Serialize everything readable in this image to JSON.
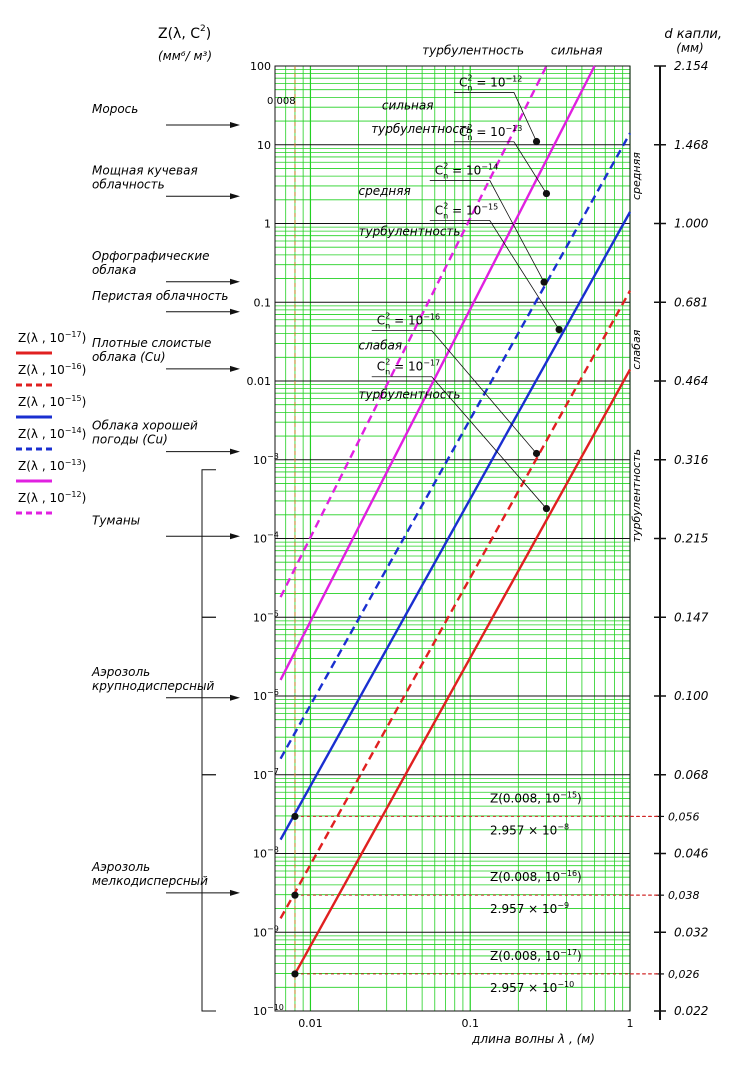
{
  "chart_data": {
    "type": "line",
    "x_scale": "log",
    "y_scale": "log",
    "xlim": [
      0.006,
      1
    ],
    "ylim": [
      1e-10,
      100
    ],
    "x_ticks": [
      {
        "value": 0.01,
        "label": "0.01"
      },
      {
        "value": 0.1,
        "label": "0.1"
      },
      {
        "value": 1,
        "label": "1"
      }
    ],
    "y_ticks": [
      {
        "value": 100,
        "label": "100"
      },
      {
        "value": 10,
        "label": "10"
      },
      {
        "value": 1,
        "label": "1"
      },
      {
        "value": 0.1,
        "label": "0.1"
      },
      {
        "value": 0.01,
        "label": "0.01"
      },
      {
        "value": 0.001,
        "base": "10",
        "exp": "−3"
      },
      {
        "value": 0.0001,
        "base": "10",
        "exp": "−4"
      },
      {
        "value": 1e-05,
        "base": "10",
        "exp": "−5"
      },
      {
        "value": 1e-06,
        "base": "10",
        "exp": "−6"
      },
      {
        "value": 1e-07,
        "base": "10",
        "exp": "−7"
      },
      {
        "value": 1e-08,
        "base": "10",
        "exp": "−8"
      },
      {
        "value": 1e-09,
        "base": "10",
        "exp": "−9"
      },
      {
        "value": 1e-10,
        "base": "10",
        "exp": "−10"
      }
    ],
    "y_title_main": "Z(λ, C",
    "y_title_sub": "n",
    "y_title_sup": "2",
    "y_title_end": ")",
    "y_units": "(мм⁶/ м³)",
    "x_title": "длина волны λ , (м)",
    "right_title_line1": "d капли,",
    "right_title_line2": "(мм)",
    "right_axis_ticks": [
      {
        "label": "2.154",
        "z": 100
      },
      {
        "label": "1.468",
        "z": 10
      },
      {
        "label": "1.000",
        "z": 1
      },
      {
        "label": "0.681",
        "z": 0.1
      },
      {
        "label": "0.464",
        "z": 0.01
      },
      {
        "label": "0.316",
        "z": 0.001
      },
      {
        "label": "0.215",
        "z": 0.0001
      },
      {
        "label": "0.147",
        "z": 1e-05
      },
      {
        "label": "0.100",
        "z": 1e-06
      },
      {
        "label": "0.068",
        "z": 1e-07
      },
      {
        "label": "0.046",
        "z": 1e-08
      },
      {
        "label": "0.032",
        "z": 1e-09
      },
      {
        "label": "0.022",
        "z": 1e-10
      }
    ],
    "right_extra_ticks": [
      {
        "label": "0,056",
        "z": 2.957e-08
      },
      {
        "label": "0,038",
        "z": 2.957e-09
      },
      {
        "label": "0,026",
        "z": 2.957e-10
      }
    ],
    "series": [
      {
        "name": "Z(λ, 10⁻¹⁷)",
        "color": "#e02020",
        "dash": false,
        "x": [
          0.008,
          1
        ],
        "y": [
          2.957e-10,
          0.014
        ]
      },
      {
        "name": "Z(λ, 10⁻¹⁶)",
        "color": "#e02020",
        "dash": true,
        "x": [
          0.0065,
          1
        ],
        "y": [
          1.5e-09,
          0.14
        ]
      },
      {
        "name": "Z(λ, 10⁻¹⁵)",
        "color": "#1a2fd0",
        "dash": false,
        "x": [
          0.0065,
          1
        ],
        "y": [
          1.5e-08,
          1.4
        ]
      },
      {
        "name": "Z(λ, 10⁻¹⁴)",
        "color": "#1a2fd0",
        "dash": true,
        "x": [
          0.0065,
          1
        ],
        "y": [
          1.6e-07,
          14
        ]
      },
      {
        "name": "Z(λ, 10⁻¹³)",
        "color": "#e020e0",
        "dash": false,
        "x": [
          0.0065,
          0.6
        ],
        "y": [
          1.6e-06,
          100
        ]
      },
      {
        "name": "Z(λ, 10⁻¹²)",
        "color": "#e020e0",
        "dash": true,
        "x": [
          0.0065,
          0.3
        ],
        "y": [
          1.8e-05,
          100
        ]
      }
    ],
    "points": [
      {
        "x": 0.008,
        "y": 2.957e-08
      },
      {
        "x": 0.008,
        "y": 2.957e-09
      },
      {
        "x": 0.008,
        "y": 2.957e-10
      },
      {
        "x": 0.26,
        "y": 11
      },
      {
        "x": 0.3,
        "y": 2.4
      },
      {
        "x": 0.29,
        "y": 0.18
      },
      {
        "x": 0.36,
        "y": 0.045
      },
      {
        "x": 0.26,
        "y": 0.0012
      },
      {
        "x": 0.3,
        "y": 0.00024
      }
    ],
    "vline_x": 0.008,
    "vline_label": "0.008",
    "formula_boxes": [
      {
        "z_label": "Z(0.008, 10",
        "exp": "−15",
        "value": "2.957 × 10",
        "value_exp": "−8",
        "z": 2.957e-08
      },
      {
        "z_label": "Z(0.008, 10",
        "exp": "−16",
        "value": "2.957 × 10",
        "value_exp": "−9",
        "z": 2.957e-09
      },
      {
        "z_label": "Z(0.008, 10",
        "exp": "−17",
        "value": "2.957 × 10",
        "value_exp": "−10",
        "z": 2.957e-10
      }
    ],
    "cn_labels": [
      {
        "exp": "−12",
        "x": 0.085,
        "y": 55
      },
      {
        "exp": "−13",
        "x": 0.085,
        "y": 13
      },
      {
        "exp": "−14",
        "x": 0.06,
        "y": 4.2
      },
      {
        "exp": "−15",
        "x": 0.06,
        "y": 1.3
      },
      {
        "exp": "−16",
        "x": 0.026,
        "y": 0.052
      },
      {
        "exp": "−17",
        "x": 0.026,
        "y": 0.0135
      }
    ],
    "turbulence_labels": [
      {
        "text": "турбулентность",
        "x": 0.05,
        "y": 140
      },
      {
        "text": "сильная",
        "x": 0.32,
        "y": 140
      },
      {
        "text": "сильная",
        "x": 0.028,
        "y": 28
      },
      {
        "text": "турбулентность",
        "x": 0.024,
        "y": 14
      },
      {
        "text": "средняя",
        "x": 0.02,
        "y": 2.3
      },
      {
        "text": "турбулентность",
        "x": 0.02,
        "y": 0.7
      },
      {
        "text": "слабая",
        "x": 0.02,
        "y": 0.025
      },
      {
        "text": "турбулентность",
        "x": 0.02,
        "y": 0.006
      }
    ],
    "right_vertical_labels": [
      {
        "text": "средняя",
        "z": 4
      },
      {
        "text": "слабая",
        "z": 0.025
      },
      {
        "text": "турбулентность",
        "z": 0.00035
      }
    ],
    "left_labels": [
      {
        "lines": [
          "Морось"
        ],
        "z": 20
      },
      {
        "lines": [
          "Мощная кучевая",
          "облачность"
        ],
        "z": 2.8
      },
      {
        "lines": [
          "Орфографические",
          "облака"
        ],
        "z": 0.23
      },
      {
        "lines": [
          "Перистая облачность"
        ],
        "z": 0.085
      },
      {
        "lines": [
          "Плотные слоистые",
          "облака (Cu)"
        ],
        "z": 0.018
      },
      {
        "lines": [
          "Облака хорошей",
          "погоды  (Cu)"
        ],
        "z": 0.0016
      },
      {
        "lines": [
          "Туманы"
        ],
        "z": 0.00012
      },
      {
        "lines": [
          "Аэрозоль",
          "крупнодисперсный"
        ],
        "z": 1.2e-06
      },
      {
        "lines": [
          "Аэрозоль",
          "мелкодисперсный"
        ],
        "z": 4e-09
      }
    ],
    "legend": [
      {
        "label": "Z(λ , 10",
        "exp": "−17",
        "color": "#e02020",
        "dash": false
      },
      {
        "label": "Z(λ , 10",
        "exp": "−16",
        "color": "#e02020",
        "dash": true
      },
      {
        "label": "Z(λ , 10",
        "exp": "−15",
        "color": "#1a2fd0",
        "dash": false
      },
      {
        "label": "Z(λ , 10",
        "exp": "−14",
        "color": "#1a2fd0",
        "dash": true
      },
      {
        "label": "Z(λ , 10",
        "exp": "−13",
        "color": "#e020e0",
        "dash": false
      },
      {
        "label": "Z(λ , 10",
        "exp": "−12",
        "color": "#e020e0",
        "dash": true
      }
    ],
    "grid": true,
    "grid_color": "#22d022"
  }
}
